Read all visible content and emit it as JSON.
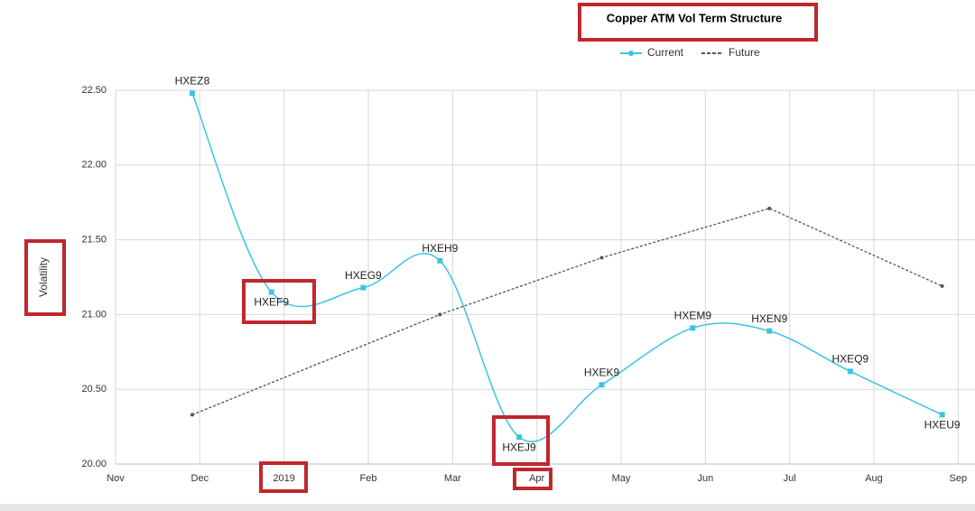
{
  "chart_data": {
    "type": "line",
    "title": "Copper ATM Vol Term Structure",
    "y_label": "Volatility",
    "xlim": [
      0,
      10.2
    ],
    "xticks": [
      {
        "value": 0,
        "label": "Nov"
      },
      {
        "value": 1,
        "label": "Dec"
      },
      {
        "value": 2,
        "label": "2019"
      },
      {
        "value": 3,
        "label": "Feb"
      },
      {
        "value": 4,
        "label": "Mar"
      },
      {
        "value": 5,
        "label": "Apr"
      },
      {
        "value": 6,
        "label": "May"
      },
      {
        "value": 7,
        "label": "Jun"
      },
      {
        "value": 8,
        "label": "Jul"
      },
      {
        "value": 9,
        "label": "Aug"
      },
      {
        "value": 10,
        "label": "Sep"
      }
    ],
    "ylim": [
      20,
      22.5
    ],
    "yticks": [
      {
        "value": 20,
        "label": "20.00"
      },
      {
        "value": 20.5,
        "label": "20.50"
      },
      {
        "value": 21,
        "label": "21.00"
      },
      {
        "value": 21.5,
        "label": "21.50"
      },
      {
        "value": 22,
        "label": "22.00"
      },
      {
        "value": 22.5,
        "label": "22.50"
      }
    ],
    "grid": true,
    "series": [
      {
        "name": "Current",
        "color": "#3cc3e6",
        "smooth": true,
        "x": [
          0.91,
          1.85,
          2.94,
          3.85,
          4.79,
          5.77,
          6.85,
          7.76,
          8.72,
          9.81
        ],
        "values": [
          22.48,
          21.15,
          21.18,
          21.36,
          20.18,
          20.53,
          20.91,
          20.89,
          20.62,
          20.33
        ],
        "labels": [
          "HXEZ8",
          "HXEF9",
          "HXEG9",
          "HXEH9",
          "HXEJ9",
          "HXEK9",
          "HXEM9",
          "HXEN9",
          "HXEQ9",
          "HXEU9"
        ]
      },
      {
        "name": "Future",
        "color": "#555555",
        "dashed": true,
        "x": [
          0.91,
          3.85,
          5.77,
          7.76,
          9.81
        ],
        "values": [
          20.33,
          21.0,
          21.38,
          21.71,
          21.19
        ]
      }
    ]
  }
}
